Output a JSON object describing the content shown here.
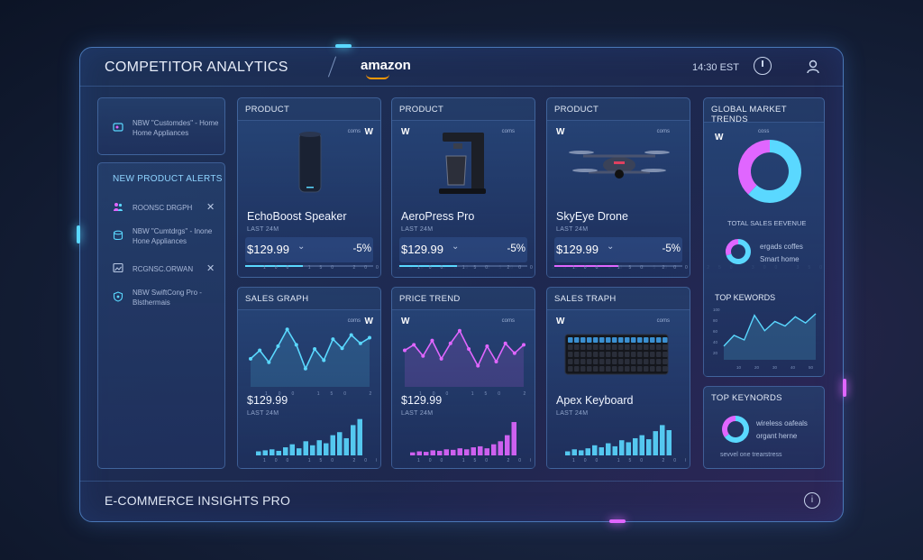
{
  "header": {
    "title": "COMPETITOR ANALYTICS",
    "brand": "amazon",
    "time": "14:30 EST"
  },
  "sidebar": {
    "top_alert": {
      "text": "NBW \"Customdes\" - Home Home Appliances"
    },
    "title": "NEW PRODUCT ALERTS",
    "alerts": [
      {
        "text": "ROONSC DRGPH",
        "closable": true
      },
      {
        "text": "NBW \"Cumtdrgs\" - Inone Hone Appliances",
        "closable": false
      },
      {
        "text": "RCGNSC.ORWAN",
        "closable": true
      },
      {
        "text": "NBW SwiftCong Pro -Blsthermais",
        "closable": false
      }
    ]
  },
  "products": [
    {
      "header": "PRODUCT",
      "name": "EchoBoost Speaker",
      "sublabel": "LAST 24M",
      "price": "$129.99",
      "change": "-5%",
      "brand_small": "coms",
      "accent": "#5ad8ff",
      "progress": 0.45
    },
    {
      "header": "PRODUCT",
      "name": "AeroPress Pro",
      "sublabel": "LAST 24M",
      "price": "$129.99",
      "change": "-5%",
      "brand_small": "coms",
      "accent": "#5ad8ff",
      "progress": 0.45
    },
    {
      "header": "PRODUCT",
      "name": "SkyEye Drone",
      "sublabel": "LAST 24M",
      "price": "$129.99",
      "change": "-5%",
      "brand_small": "coms",
      "accent": "#e066ff",
      "progress": 0.5
    }
  ],
  "charts": [
    {
      "header": "SALES GRAPH",
      "price": "$129.99",
      "sublabel": "LAST 24M",
      "brand_small": "coms",
      "accent": "#5ad8ff",
      "line": [
        40,
        52,
        35,
        58,
        82,
        60,
        26,
        54,
        38,
        68,
        55,
        74,
        62,
        70
      ],
      "bars": [
        8,
        10,
        12,
        9,
        16,
        22,
        14,
        28,
        20,
        30,
        24,
        40,
        46,
        34,
        60,
        72
      ]
    },
    {
      "header": "PRICE TREND",
      "price": "$129.99",
      "sublabel": "LAST 24M",
      "brand_small": "coms",
      "accent": "#e066ff",
      "line": [
        52,
        60,
        44,
        66,
        40,
        62,
        80,
        54,
        30,
        58,
        36,
        62,
        48,
        60
      ],
      "bars": [
        6,
        8,
        7,
        10,
        9,
        12,
        11,
        14,
        12,
        16,
        18,
        14,
        22,
        28,
        40,
        66
      ]
    },
    {
      "header": "SALES TRAPH",
      "name": "Apex Keyboard",
      "sublabel": "LAST 24M",
      "brand_small": "coms",
      "accent": "#5ad8ff",
      "bars": [
        8,
        12,
        10,
        14,
        20,
        16,
        24,
        18,
        30,
        26,
        34,
        40,
        32,
        48,
        60,
        50
      ]
    }
  ],
  "global": {
    "header": "GLOBAL MARKET TRENDS",
    "brand_small": "coss",
    "donut": {
      "values": [
        62,
        38
      ],
      "colors": [
        "#5ad8ff",
        "#e066ff"
      ]
    },
    "total_label": "TOTAL SALES EEVENUE",
    "legend1": "ergads coffes",
    "legend2": "Smart home",
    "keywords_title": "TOP KEWORDS",
    "keyword_line": [
      20,
      34,
      28,
      60,
      40,
      52,
      46,
      58,
      50,
      62
    ],
    "y_ticks": [
      "100",
      "80",
      "60",
      "40",
      "20"
    ],
    "x_ticks": [
      "10",
      "20",
      "30",
      "40",
      "50"
    ]
  },
  "keywords2": {
    "title": "TOP KEYNORDS",
    "legend1": "wireless oafeals",
    "legend2": "organt herne",
    "footer": "sevvel one trearstress",
    "donut": {
      "values": [
        65,
        35
      ],
      "colors": [
        "#5ad8ff",
        "#e066ff"
      ]
    }
  },
  "footer": {
    "title": "E-COMMERCE INSIGHTS PRO",
    "help": "i"
  },
  "axis_ticks": "100 150 200 250 300 350"
}
